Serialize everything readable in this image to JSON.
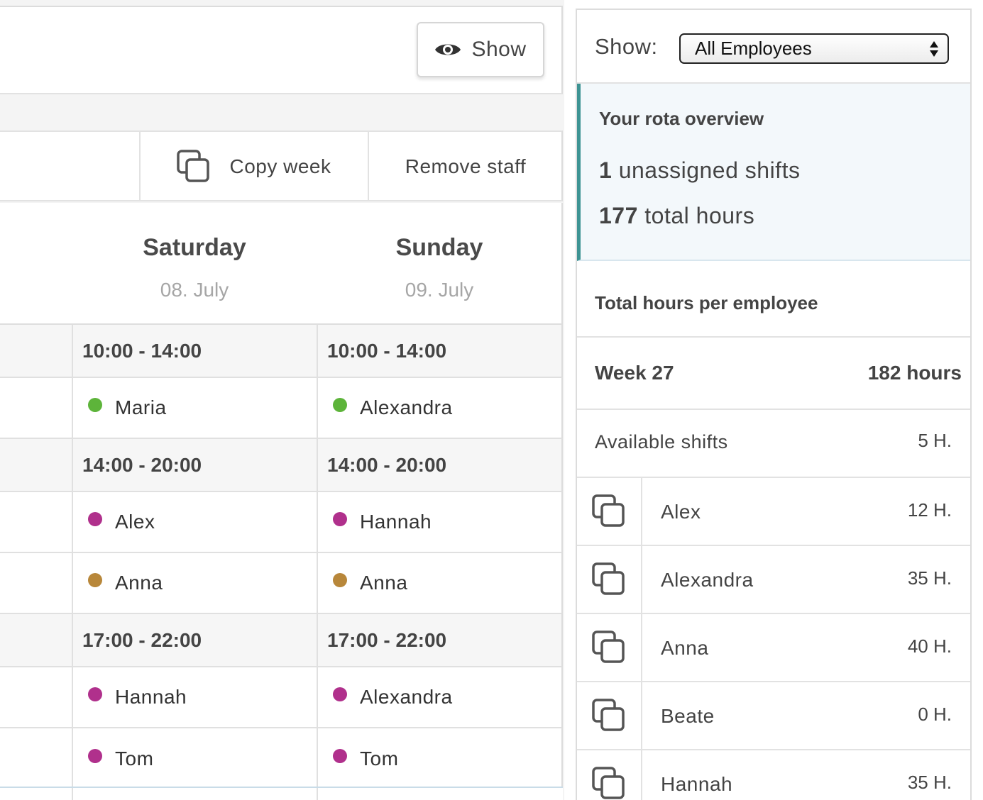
{
  "toolbar": {
    "show_label": "Show"
  },
  "actions": {
    "copy_week": "Copy week",
    "remove_staff": "Remove staff"
  },
  "days": [
    {
      "name": "Saturday",
      "date": "08. July"
    },
    {
      "name": "Sunday",
      "date": "09. July"
    }
  ],
  "schedule": [
    {
      "time": [
        "10:00 - 14:00",
        "10:00 - 14:00"
      ],
      "staff": [
        [
          {
            "name": "Maria",
            "color": "#5db43a"
          },
          {
            "name": "Alexandra",
            "color": "#5db43a"
          }
        ]
      ]
    },
    {
      "time": [
        "14:00 - 20:00",
        "14:00 - 20:00"
      ],
      "staff": [
        [
          {
            "name": "Alex",
            "color": "#b0308c"
          },
          {
            "name": "Hannah",
            "color": "#b0308c"
          }
        ],
        [
          {
            "name": "Anna",
            "color": "#b8873a"
          },
          {
            "name": "Anna",
            "color": "#b8873a"
          }
        ]
      ]
    },
    {
      "time": [
        "17:00 - 22:00",
        "17:00 - 22:00"
      ],
      "staff": [
        [
          {
            "name": "Hannah",
            "color": "#b0308c"
          },
          {
            "name": "Alexandra",
            "color": "#b0308c"
          }
        ],
        [
          {
            "name": "Tom",
            "color": "#b0308c"
          },
          {
            "name": "Tom",
            "color": "#b0308c"
          }
        ]
      ]
    }
  ],
  "sidebar": {
    "filter_label": "Show:",
    "filter_value": "All Employees",
    "overview": {
      "title": "Your rota overview",
      "unassigned_count": "1",
      "unassigned_text": "unassigned shifts",
      "hours_count": "177",
      "hours_text": "total hours"
    },
    "per_employee_title": "Total hours per employee",
    "week": {
      "label": "Week 27",
      "hours": "182 hours"
    },
    "available": {
      "label": "Available shifts",
      "hours": "5 H."
    },
    "employees": [
      {
        "name": "Alex",
        "hours": "12 H."
      },
      {
        "name": "Alexandra",
        "hours": "35 H."
      },
      {
        "name": "Anna",
        "hours": "40 H."
      },
      {
        "name": "Beate",
        "hours": "0 H."
      },
      {
        "name": "Hannah",
        "hours": "35 H."
      }
    ]
  },
  "icons": {
    "eye": "eye-icon",
    "copy": "copy-icon",
    "select_arrows": "select-arrows-icon"
  },
  "colors": {
    "accent": "#3d9393",
    "overview_bg": "#f3f8fb",
    "green": "#5db43a",
    "magenta": "#b0308c",
    "ochre": "#b8873a"
  }
}
